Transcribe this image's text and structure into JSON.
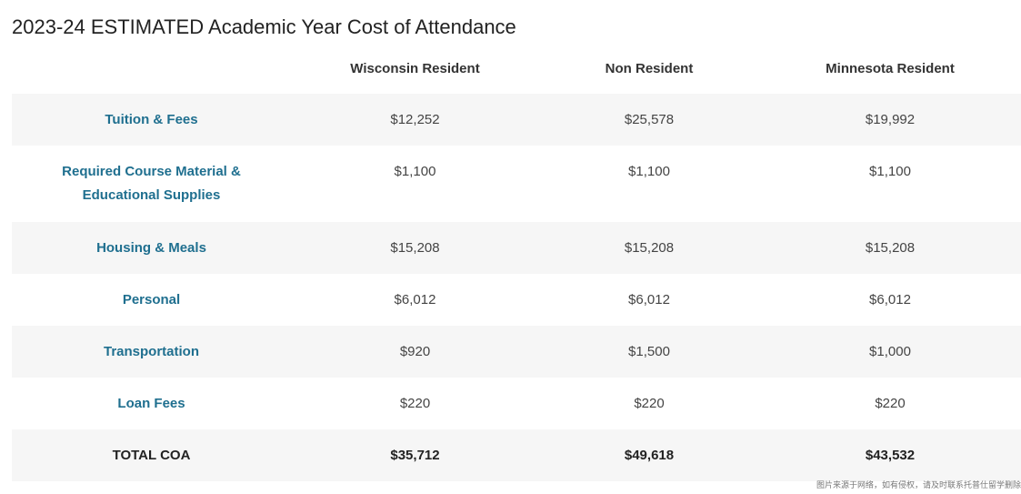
{
  "title": "2023-24 ESTIMATED Academic Year Cost of Attendance",
  "columns": [
    "Wisconsin Resident",
    "Non Resident",
    "Minnesota Resident"
  ],
  "rows": [
    {
      "label": "Tuition & Fees",
      "values": [
        "$12,252",
        "$25,578",
        "$19,992"
      ]
    },
    {
      "label": "Required Course Material & Educational Supplies",
      "values": [
        "$1,100",
        "$1,100",
        "$1,100"
      ]
    },
    {
      "label": "Housing & Meals",
      "values": [
        "$15,208",
        "$15,208",
        "$15,208"
      ]
    },
    {
      "label": "Personal",
      "values": [
        "$6,012",
        "$6,012",
        "$6,012"
      ]
    },
    {
      "label": "Transportation",
      "values": [
        "$920",
        "$1,500",
        "$1,000"
      ]
    },
    {
      "label": "Loan Fees",
      "values": [
        "$220",
        "$220",
        "$220"
      ]
    },
    {
      "label": "TOTAL COA",
      "values": [
        "$35,712",
        "$49,618",
        "$43,532"
      ]
    }
  ],
  "watermark": "图片来源于网络，如有侵权，请及时联系托普仕留学删除",
  "colors": {
    "row_label": "#1f6f8f",
    "shaded_row": "#f6f6f6",
    "text": "#444444"
  }
}
